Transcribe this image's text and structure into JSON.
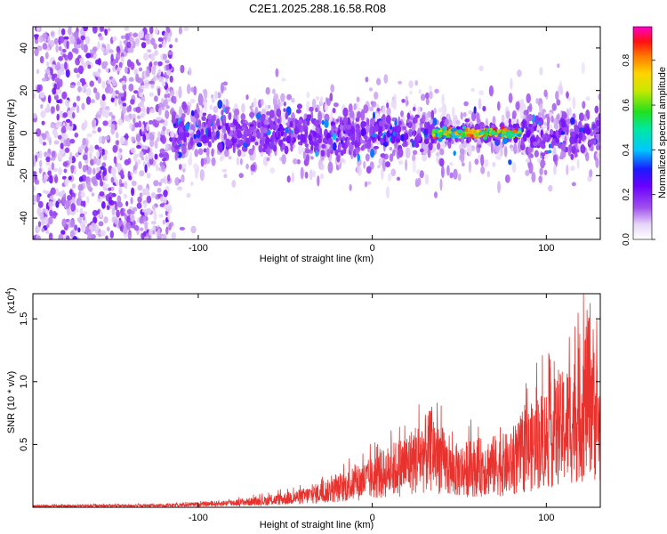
{
  "title": "C2E1.2025.288.16.58.R08",
  "chart_data": [
    {
      "type": "heatmap",
      "xlabel": "Height of straight line (km)",
      "ylabel": "Frequency (Hz)",
      "xlim": [
        -195,
        131
      ],
      "ylim": [
        -50,
        50
      ],
      "xticks": [
        -100,
        0,
        100
      ],
      "yticks": [
        -40,
        -20,
        0,
        20,
        40
      ],
      "colorbar": {
        "label": "Normalized spectral amplitude",
        "range": [
          0,
          0.95
        ],
        "ticks": [
          0.0,
          0.2,
          0.4,
          0.6,
          0.8
        ]
      },
      "regions": [
        {
          "x": [
            -195,
            -115
          ],
          "pattern": "scattered low-amplitude speckle across all frequencies"
        },
        {
          "x": [
            -115,
            35
          ],
          "pattern": "dense band near 0 Hz, spread about ±20 Hz, amplitude up to ~0.3"
        },
        {
          "x": [
            35,
            85
          ],
          "pattern": "narrow band near 0 Hz with high amplitude up to ~0.9"
        },
        {
          "x": [
            85,
            131
          ],
          "pattern": "band near 0 Hz, spread about ±20 Hz, amplitude up to ~0.3"
        }
      ],
      "color": "#8a2be2"
    },
    {
      "type": "line",
      "xlabel": "Height of straight line (km)",
      "ylabel": "SNR (10 * v/v)",
      "yscale_label": "(x10",
      "yscale_exp": "4",
      "xlim": [
        -195,
        131
      ],
      "ylim": [
        0,
        17000
      ],
      "xticks": [
        -100,
        0,
        100
      ],
      "yticks": [
        5000,
        10000,
        15000
      ],
      "ytick_labels": [
        "0.5",
        "1.0",
        "1.5"
      ],
      "color": "#e8322e",
      "envelope": [
        {
          "x": -195,
          "y": 200
        },
        {
          "x": -120,
          "y": 250
        },
        {
          "x": -90,
          "y": 500
        },
        {
          "x": -60,
          "y": 900
        },
        {
          "x": -40,
          "y": 1500
        },
        {
          "x": -20,
          "y": 2500
        },
        {
          "x": 0,
          "y": 4000
        },
        {
          "x": 20,
          "y": 6000
        },
        {
          "x": 35,
          "y": 8000
        },
        {
          "x": 45,
          "y": 5000
        },
        {
          "x": 60,
          "y": 5500
        },
        {
          "x": 80,
          "y": 6000
        },
        {
          "x": 95,
          "y": 9000
        },
        {
          "x": 110,
          "y": 11000
        },
        {
          "x": 120,
          "y": 13000
        },
        {
          "x": 125,
          "y": 17000
        },
        {
          "x": 131,
          "y": 10000
        }
      ]
    }
  ]
}
